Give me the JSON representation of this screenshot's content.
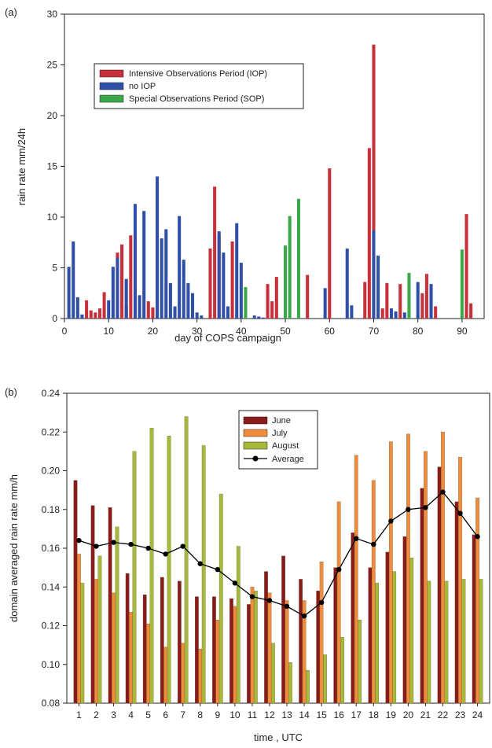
{
  "chart_data": [
    {
      "panel_label": "(a)",
      "type": "bar",
      "xlabel": "day of COPS campaign",
      "ylabel": "rain rate mm/24h",
      "xlim": [
        0,
        95
      ],
      "ylim": [
        0,
        30
      ],
      "xticks": [
        0,
        10,
        20,
        30,
        40,
        50,
        60,
        70,
        80,
        90
      ],
      "yticks": [
        0,
        5,
        10,
        15,
        20,
        25,
        30
      ],
      "legend_position": "upper-left",
      "series": [
        {
          "name": "Intensive Observations Period (IOP)",
          "color": "#c8303a",
          "points": [
            [
              5,
              1.8
            ],
            [
              6,
              0.8
            ],
            [
              7,
              0.6
            ],
            [
              8,
              1.0
            ],
            [
              9,
              2.6
            ],
            [
              12,
              6.5
            ],
            [
              13,
              7.3
            ],
            [
              14,
              1.4
            ],
            [
              15,
              8.2
            ],
            [
              19,
              1.7
            ],
            [
              20,
              1.1
            ],
            [
              33,
              6.9
            ],
            [
              34,
              13.0
            ],
            [
              35,
              8.1
            ],
            [
              38,
              7.6
            ],
            [
              46,
              3.4
            ],
            [
              47,
              1.7
            ],
            [
              48,
              4.1
            ],
            [
              55,
              4.3
            ],
            [
              60,
              14.8
            ],
            [
              68,
              3.6
            ],
            [
              69,
              16.8
            ],
            [
              70,
              27.0
            ],
            [
              72,
              1.0
            ],
            [
              73,
              3.5
            ],
            [
              76,
              3.4
            ],
            [
              81,
              2.5
            ],
            [
              82,
              4.4
            ],
            [
              84,
              1.2
            ],
            [
              91,
              10.3
            ],
            [
              92,
              1.5
            ]
          ]
        },
        {
          "name": "no IOP",
          "color": "#3050a8",
          "points": [
            [
              1,
              5.1
            ],
            [
              2,
              7.6
            ],
            [
              3,
              2.1
            ],
            [
              4,
              0.4
            ],
            [
              10,
              1.8
            ],
            [
              11,
              5.1
            ],
            [
              12,
              6.0
            ],
            [
              14,
              3.9
            ],
            [
              16,
              11.3
            ],
            [
              17,
              2.3
            ],
            [
              18,
              10.6
            ],
            [
              21,
              14.0
            ],
            [
              22,
              7.9
            ],
            [
              23,
              8.8
            ],
            [
              24,
              3.5
            ],
            [
              25,
              1.2
            ],
            [
              26,
              10.1
            ],
            [
              27,
              5.8
            ],
            [
              28,
              3.5
            ],
            [
              29,
              2.5
            ],
            [
              30,
              0.6
            ],
            [
              31,
              0.3
            ],
            [
              35,
              8.6
            ],
            [
              36,
              6.5
            ],
            [
              37,
              1.2
            ],
            [
              39,
              9.4
            ],
            [
              40,
              5.5
            ],
            [
              41,
              0.5
            ],
            [
              43,
              0.3
            ],
            [
              44,
              0.2
            ],
            [
              45,
              0.1
            ],
            [
              59,
              3.0
            ],
            [
              64,
              6.9
            ],
            [
              65,
              1.3
            ],
            [
              70,
              8.7
            ],
            [
              71,
              6.2
            ],
            [
              74,
              1.0
            ],
            [
              75,
              0.7
            ],
            [
              77,
              0.6
            ],
            [
              80,
              3.6
            ],
            [
              83,
              3.4
            ]
          ]
        },
        {
          "name": "Special Observations Period (SOP)",
          "color": "#38a848",
          "points": [
            [
              41,
              3.1
            ],
            [
              50,
              7.2
            ],
            [
              51,
              10.1
            ],
            [
              53,
              11.8
            ],
            [
              78,
              4.5
            ],
            [
              90,
              6.8
            ]
          ]
        }
      ]
    },
    {
      "panel_label": "(b)",
      "type": "bar",
      "xlabel": "time , UTC",
      "ylabel": "domain averaged rain rate mm/h",
      "ylim": [
        0.08,
        0.24
      ],
      "yticks": [
        "0.08",
        "0.10",
        "0.12",
        "0.14",
        "0.16",
        "0.18",
        "0.20",
        "0.22",
        "0.24"
      ],
      "categories": [
        "1",
        "2",
        "3",
        "4",
        "5",
        "6",
        "7",
        "8",
        "9",
        "10",
        "11",
        "12",
        "13",
        "14",
        "15",
        "16",
        "17",
        "18",
        "19",
        "20",
        "21",
        "22",
        "23",
        "24"
      ],
      "legend_position": "top-center",
      "series": [
        {
          "name": "June",
          "color": "#8b1a1a",
          "values": [
            0.195,
            0.182,
            0.181,
            0.147,
            0.136,
            0.145,
            0.143,
            0.135,
            0.135,
            0.134,
            0.131,
            0.148,
            0.156,
            0.144,
            0.138,
            0.15,
            0.168,
            0.15,
            0.158,
            0.166,
            0.191,
            0.202,
            0.184,
            0.167
          ]
        },
        {
          "name": "July",
          "color": "#f08c3c",
          "values": [
            0.157,
            0.144,
            0.137,
            0.127,
            0.121,
            0.109,
            0.111,
            0.108,
            0.123,
            0.13,
            0.14,
            0.137,
            0.133,
            0.133,
            0.153,
            0.184,
            0.208,
            0.195,
            0.215,
            0.219,
            0.21,
            0.22,
            0.207,
            0.186
          ]
        },
        {
          "name": "August",
          "color": "#a8b838",
          "values": [
            0.142,
            0.156,
            0.171,
            0.21,
            0.222,
            0.218,
            0.228,
            0.213,
            0.188,
            0.161,
            0.138,
            0.111,
            0.101,
            0.097,
            0.105,
            0.114,
            0.123,
            0.142,
            0.148,
            0.155,
            0.143,
            0.143,
            0.144,
            0.144
          ]
        },
        {
          "name": "Average",
          "color": "#000000",
          "type": "line",
          "values": [
            0.164,
            0.161,
            0.163,
            0.162,
            0.16,
            0.157,
            0.161,
            0.152,
            0.149,
            0.142,
            0.135,
            0.133,
            0.13,
            0.125,
            0.132,
            0.149,
            0.165,
            0.162,
            0.174,
            0.18,
            0.181,
            0.189,
            0.178,
            0.166
          ]
        }
      ]
    }
  ]
}
